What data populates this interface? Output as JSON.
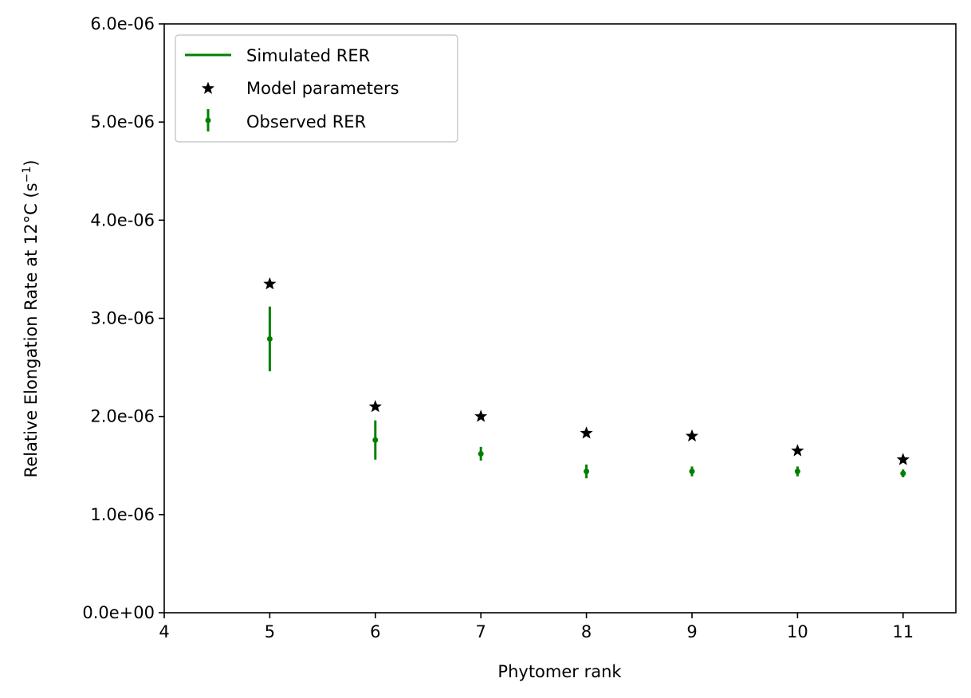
{
  "chart_data": {
    "type": "scatter",
    "title": "",
    "xlabel": "Phytomer rank",
    "ylabel_main": "Relative Elongation Rate at 12°C (s",
    "ylabel_sup": "−1",
    "ylabel_close": ")",
    "xlim": [
      4,
      11.5
    ],
    "ylim": [
      0,
      6e-06
    ],
    "xticks": [
      4,
      5,
      6,
      7,
      8,
      9,
      10,
      11
    ],
    "xtick_labels": [
      "4",
      "5",
      "6",
      "7",
      "8",
      "9",
      "10",
      "11"
    ],
    "yticks": [
      0,
      1e-06,
      2e-06,
      3e-06,
      4e-06,
      5e-06,
      6e-06
    ],
    "ytick_labels": [
      "0.0e+00",
      "1.0e-06",
      "2.0e-06",
      "3.0e-06",
      "4.0e-06",
      "5.0e-06",
      "6.0e-06"
    ],
    "grid": false,
    "legend_placement": "top-left",
    "series": [
      {
        "name": "Simulated RER",
        "kind": "line",
        "color": "#008000",
        "x": [],
        "y": []
      },
      {
        "name": "Model parameters",
        "kind": "star-marker",
        "color": "#000000",
        "x": [
          5,
          6,
          7,
          8,
          9,
          10,
          11
        ],
        "y": [
          3.35e-06,
          2.1e-06,
          2e-06,
          1.83e-06,
          1.8e-06,
          1.65e-06,
          1.56e-06
        ]
      },
      {
        "name": "Observed RER",
        "kind": "errorbar",
        "color": "#008000",
        "x": [
          5,
          6,
          7,
          8,
          9,
          10,
          11
        ],
        "y": [
          2.79e-06,
          1.76e-06,
          1.62e-06,
          1.44e-06,
          1.44e-06,
          1.44e-06,
          1.42e-06
        ],
        "yerr": [
          3.3e-07,
          2e-07,
          7e-08,
          7e-08,
          5e-08,
          5e-08,
          4e-08
        ]
      }
    ]
  }
}
